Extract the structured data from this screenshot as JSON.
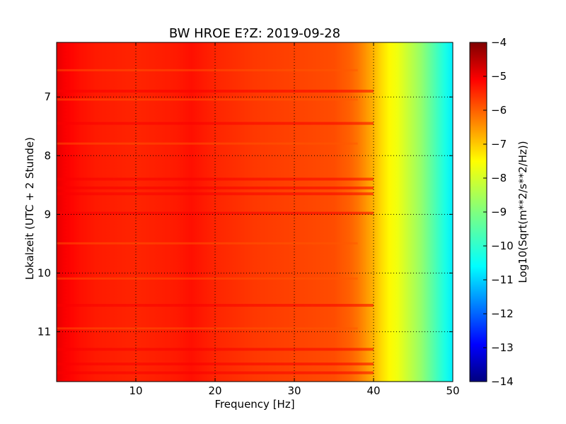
{
  "chart_data": {
    "type": "heatmap",
    "title": "BW HROE E?Z: 2019-09-28",
    "xlabel": "Frequency [Hz]",
    "ylabel": "Lokalzeit (UTC + 2 Stunde)",
    "xlim": [
      0,
      50
    ],
    "ylim": [
      11.85,
      6.07
    ],
    "y_inverted": true,
    "x_ticks": [
      10,
      20,
      30,
      40,
      50
    ],
    "y_ticks": [
      7,
      8,
      9,
      10,
      11
    ],
    "grid": true,
    "grid_style": "dotted",
    "colormap": "jet",
    "colorbar": {
      "label": "Log10(Sqrt(m**2/s**2/Hz))",
      "range": [
        -14,
        -4
      ],
      "ticks": [
        -4,
        -5,
        -6,
        -7,
        -8,
        -9,
        -10,
        -11,
        -12,
        -13,
        -14
      ]
    },
    "frequency_profile": {
      "frequency": [
        0,
        1,
        2,
        3,
        5,
        10,
        15,
        17,
        20,
        25,
        30,
        35,
        37,
        38,
        39,
        40,
        41,
        42,
        43,
        44,
        45,
        46,
        47,
        48,
        49,
        50
      ],
      "value": [
        -5.0,
        -5.2,
        -5.3,
        -5.4,
        -5.5,
        -5.6,
        -5.5,
        -5.4,
        -5.6,
        -5.8,
        -5.9,
        -6.0,
        -6.2,
        -6.4,
        -6.7,
        -7.0,
        -7.4,
        -7.7,
        -7.9,
        -8.2,
        -8.5,
        -8.8,
        -9.2,
        -9.6,
        -10.0,
        -10.4
      ]
    },
    "strong_rows_hours": [
      6.9,
      7.45,
      8.4,
      8.55,
      8.65,
      8.98,
      10.55,
      11.3,
      11.55,
      11.7
    ],
    "weak_rows_hours": [
      6.55,
      7.05,
      7.8,
      9.5,
      10.1,
      10.95
    ]
  }
}
